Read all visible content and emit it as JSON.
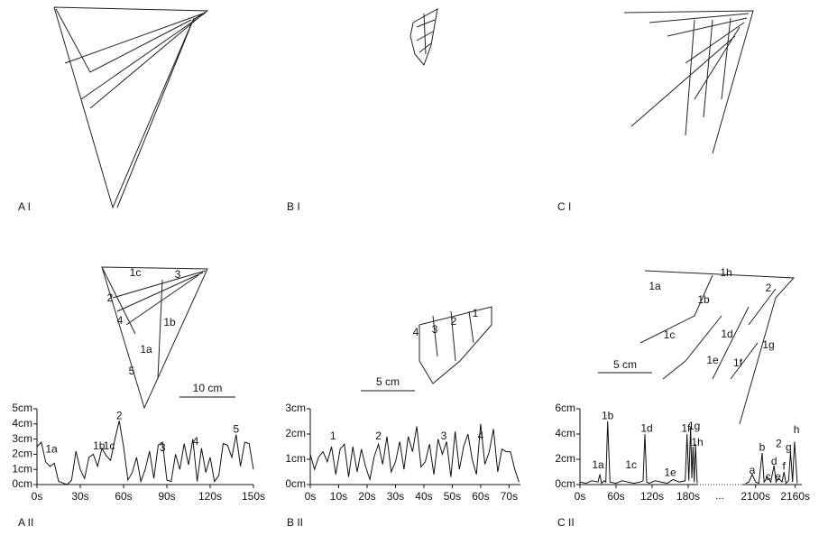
{
  "panels": [
    "A I",
    "B I",
    "C I",
    "A II",
    "B II",
    "C II"
  ],
  "drawings": [
    {
      "labels": [
        "1c",
        "3",
        "2",
        "4",
        "1b",
        "1a",
        "5"
      ],
      "scale": "10 cm"
    },
    {
      "labels": [
        "4",
        "3",
        "2",
        "1"
      ],
      "scale": "5 cm"
    },
    {
      "labels": [
        "1h",
        "1a",
        "1b",
        "2",
        "1c",
        "1d",
        "1e",
        "1f",
        "1g"
      ],
      "scale": "5 cm"
    }
  ],
  "chart_data": [
    {
      "type": "line",
      "color": "#111",
      "x": [
        0,
        3,
        6,
        9,
        12,
        15,
        18,
        21,
        24,
        27,
        30,
        33,
        36,
        39,
        42,
        45,
        48,
        51,
        54,
        57,
        60,
        63,
        66,
        69,
        72,
        75,
        78,
        81,
        84,
        87,
        90,
        93,
        96,
        99,
        102,
        105,
        108,
        111,
        114,
        117,
        120,
        123,
        126,
        129,
        132,
        135,
        138,
        141,
        144,
        147,
        150
      ],
      "values": [
        2.5,
        2.8,
        1.5,
        1.2,
        1.4,
        0.2,
        0.1,
        0,
        0.3,
        2.2,
        1.0,
        0.4,
        1.8,
        2.0,
        1.2,
        2.4,
        1.9,
        1.6,
        3.0,
        4.2,
        2.5,
        0.3,
        0.8,
        1.8,
        0.2,
        1.0,
        2.2,
        0.4,
        2.6,
        2.8,
        0.3,
        0.2,
        2.0,
        1.0,
        2.7,
        1.3,
        3.0,
        0.2,
        2.4,
        0.8,
        1.8,
        0.2,
        0.6,
        2.7,
        2.6,
        1.8,
        3.3,
        1.2,
        2.8,
        2.7,
        1.0
      ],
      "xlim": [
        0,
        150
      ],
      "ylim": [
        0,
        5
      ],
      "xticks": [
        {
          "value": 0,
          "label": "0s"
        },
        {
          "value": 30,
          "label": "30s"
        },
        {
          "value": 60,
          "label": "60s"
        },
        {
          "value": 90,
          "label": "90s"
        },
        {
          "value": 120,
          "label": "120s"
        },
        {
          "value": 150,
          "label": "150s"
        }
      ],
      "yticks": [
        {
          "value": 0,
          "label": "0cm"
        },
        {
          "value": 1,
          "label": "1cm"
        },
        {
          "value": 2,
          "label": "2cm"
        },
        {
          "value": 3,
          "label": "3cm"
        },
        {
          "value": 4,
          "label": "4cm"
        },
        {
          "value": 5,
          "label": "5cm"
        }
      ],
      "annotations": [
        {
          "text": "1a",
          "x": 10,
          "y": 2.3
        },
        {
          "text": "1b",
          "x": 43,
          "y": 2.5
        },
        {
          "text": "1c",
          "x": 50,
          "y": 2.5
        },
        {
          "text": "2",
          "x": 57,
          "y": 4.5
        },
        {
          "text": "3",
          "x": 87,
          "y": 2.4
        },
        {
          "text": "4",
          "x": 110,
          "y": 2.8
        },
        {
          "text": "5",
          "x": 138,
          "y": 3.6
        }
      ]
    },
    {
      "type": "line",
      "color": "#111",
      "x": [
        0,
        1.5,
        3,
        4.5,
        6,
        7.5,
        9,
        10.5,
        12,
        13.5,
        15,
        16.5,
        18,
        19.5,
        21,
        22.5,
        24,
        25.5,
        27,
        28.5,
        30,
        31.5,
        33,
        34.5,
        36,
        37.5,
        39,
        40.5,
        42,
        43.5,
        45,
        46.5,
        48,
        49.5,
        51,
        52.5,
        54,
        55.5,
        57,
        58.5,
        60,
        61.5,
        63,
        64.5,
        66,
        67.5,
        69,
        70.5,
        72,
        73.5
      ],
      "values": [
        1.2,
        0.6,
        1.1,
        1.3,
        0.9,
        1.5,
        0.4,
        1.4,
        1.6,
        0.3,
        1.5,
        0.5,
        1.4,
        0.7,
        0.2,
        1.1,
        1.6,
        0.8,
        1.9,
        0.5,
        0.9,
        1.7,
        0.6,
        1.9,
        1.3,
        2.3,
        0.7,
        0.9,
        1.6,
        0.4,
        1.8,
        1.2,
        1.7,
        0.3,
        2.1,
        0.6,
        1.5,
        2.0,
        1.0,
        0.4,
        2.4,
        0.8,
        1.3,
        2.2,
        0.5,
        1.4,
        1.3,
        1.3,
        0.6,
        0.1
      ],
      "xlim": [
        0,
        74
      ],
      "ylim": [
        0,
        3
      ],
      "xticks": [
        {
          "value": 0,
          "label": "0s"
        },
        {
          "value": 10,
          "label": "10s"
        },
        {
          "value": 20,
          "label": "20s"
        },
        {
          "value": 30,
          "label": "30s"
        },
        {
          "value": 40,
          "label": "40s"
        },
        {
          "value": 50,
          "label": "50s"
        },
        {
          "value": 60,
          "label": "60s"
        },
        {
          "value": 70,
          "label": "70s"
        }
      ],
      "yticks": [
        {
          "value": 0,
          "label": "0cm"
        },
        {
          "value": 1,
          "label": "1cm"
        },
        {
          "value": 2,
          "label": "2cm"
        },
        {
          "value": 3,
          "label": "3cm"
        }
      ],
      "annotations": [
        {
          "text": "1",
          "x": 8,
          "y": 1.9
        },
        {
          "text": "2",
          "x": 24,
          "y": 1.9
        },
        {
          "text": "3",
          "x": 47,
          "y": 1.9
        },
        {
          "text": "4",
          "x": 60,
          "y": 1.9
        }
      ]
    },
    {
      "type": "line",
      "color": "#111",
      "x": [
        0,
        10,
        20,
        30,
        33,
        36,
        40,
        43,
        46,
        50,
        60,
        70,
        80,
        90,
        100,
        105,
        108,
        111,
        115,
        125,
        135,
        145,
        155,
        165,
        175,
        178,
        181,
        184,
        186,
        188,
        190,
        192,
        195,
        null,
        2085,
        2090,
        2095,
        2100,
        2105,
        2110,
        2113,
        2118,
        2123,
        2128,
        2131,
        2135,
        2140,
        2143,
        2146,
        2150,
        2153,
        2156,
        2159,
        2163
      ],
      "values": [
        0.2,
        0.1,
        0.3,
        0.2,
        0.8,
        0.1,
        0.3,
        0.2,
        5.0,
        0.2,
        0.1,
        0.3,
        0.2,
        0.1,
        0.2,
        0.3,
        4.0,
        0.2,
        0.1,
        0.3,
        0.2,
        0.1,
        0.4,
        0.2,
        0.3,
        4.0,
        0.3,
        4.6,
        0.5,
        3.0,
        0.2,
        3.2,
        0.1,
        null,
        0.1,
        0.2,
        0.8,
        0.2,
        0.1,
        2.5,
        0.2,
        0.6,
        0.2,
        1.5,
        0.2,
        0.5,
        0.2,
        1.0,
        0.1,
        0.3,
        2.6,
        0.2,
        3.4,
        0.1
      ],
      "xsegments": [
        [
          0,
          195
        ],
        [
          2080,
          2170
        ]
      ],
      "x_break_label": "...",
      "ylim": [
        0,
        6
      ],
      "xticks": [
        {
          "value": 0,
          "label": "0s"
        },
        {
          "value": 60,
          "label": "60s"
        },
        {
          "value": 120,
          "label": "120s"
        },
        {
          "value": 180,
          "label": "180s"
        },
        {
          "value": 2100,
          "label": "2100s"
        },
        {
          "value": 2160,
          "label": "2160s"
        }
      ],
      "yticks": [
        {
          "value": 0,
          "label": "0cm"
        },
        {
          "value": 2,
          "label": "2cm"
        },
        {
          "value": 4,
          "label": "4cm"
        },
        {
          "value": 6,
          "label": "6cm"
        }
      ],
      "annotations": [
        {
          "text": "1a",
          "x": 30,
          "y": 1.5
        },
        {
          "text": "1b",
          "x": 46,
          "y": 5.4
        },
        {
          "text": "1c",
          "x": 85,
          "y": 1.5
        },
        {
          "text": "1d",
          "x": 111,
          "y": 4.4
        },
        {
          "text": "1e",
          "x": 150,
          "y": 0.9
        },
        {
          "text": "1f",
          "x": 176,
          "y": 4.4
        },
        {
          "text": "1g",
          "x": 190,
          "y": 4.6
        },
        {
          "text": "1h",
          "x": 200,
          "y": 3.3
        },
        {
          "text": "a",
          "x": 2095,
          "y": 1.1
        },
        {
          "text": "b",
          "x": 2110,
          "y": 2.9
        },
        {
          "text": "c",
          "x": 2119,
          "y": 0.6
        },
        {
          "text": "d",
          "x": 2128,
          "y": 1.8
        },
        {
          "text": "e",
          "x": 2134,
          "y": 0.6
        },
        {
          "text": "f",
          "x": 2143,
          "y": 1.4
        },
        {
          "text": "2",
          "x": 2135,
          "y": 3.2
        },
        {
          "text": "g",
          "x": 2150,
          "y": 2.9
        },
        {
          "text": "h",
          "x": 2162,
          "y": 4.3
        }
      ]
    }
  ]
}
